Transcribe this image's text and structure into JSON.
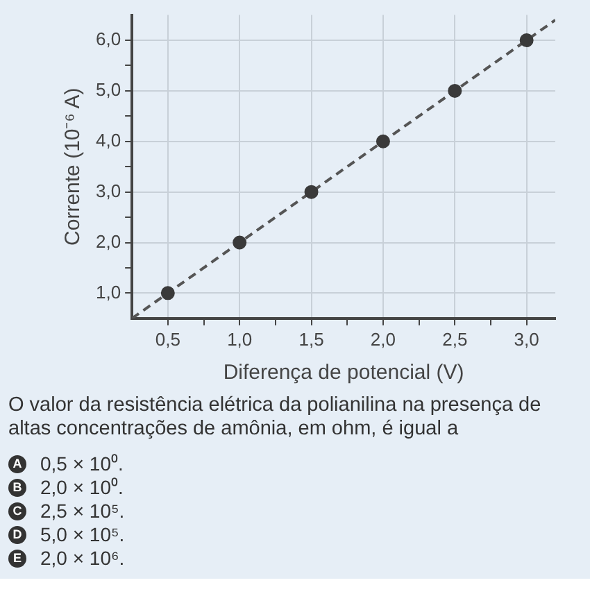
{
  "chart_data": {
    "type": "scatter",
    "xlabel": "Diferença de potencial (V)",
    "ylabel": "Corrente (10⁻⁶ A)",
    "series": [
      {
        "color": "#3a3a3a",
        "x": [
          0.5,
          1.0,
          1.5,
          2.0,
          2.5,
          3.0
        ],
        "values": [
          1.0,
          2.0,
          3.0,
          4.0,
          5.0,
          6.0
        ],
        "marker": "circle"
      },
      {
        "type": "line",
        "color": "#555555",
        "x": [
          0.25,
          3.2
        ],
        "values": [
          0.5,
          6.4
        ],
        "line_style": "dashed",
        "marker": "none"
      }
    ],
    "xlim": [
      0.25,
      3.2
    ],
    "ylim": [
      0.5,
      6.5
    ],
    "xticks": [
      {
        "value": 0.5,
        "label": "0,5"
      },
      {
        "value": 0.75,
        "label": null
      },
      {
        "value": 1.0,
        "label": "1,0"
      },
      {
        "value": 1.25,
        "label": null
      },
      {
        "value": 1.5,
        "label": "1,5"
      },
      {
        "value": 1.75,
        "label": null
      },
      {
        "value": 2.0,
        "label": "2,0"
      },
      {
        "value": 2.25,
        "label": null
      },
      {
        "value": 2.5,
        "label": "2,5"
      },
      {
        "value": 2.75,
        "label": null
      },
      {
        "value": 3.0,
        "label": "3,0"
      }
    ],
    "yticks": [
      {
        "value": 1.0,
        "label": "1,0"
      },
      {
        "value": 1.5,
        "label": null
      },
      {
        "value": 2.0,
        "label": "2,0"
      },
      {
        "value": 2.5,
        "label": null
      },
      {
        "value": 3.0,
        "label": "3,0"
      },
      {
        "value": 3.5,
        "label": null
      },
      {
        "value": 4.0,
        "label": "4,0"
      },
      {
        "value": 4.5,
        "label": null
      },
      {
        "value": 5.0,
        "label": "5,0"
      },
      {
        "value": 5.5,
        "label": null
      },
      {
        "value": 6.0,
        "label": "6,0"
      }
    ],
    "grid": true,
    "legend": false,
    "annotations": [
      "O valor da resistência elétrica da polianilina na presença de altas concentrações de amônia, em ohm, é igual a",
      "A 0,5 × 10⁰.",
      "B 2,0 × 10⁰.",
      "C 2,5 × 10⁵.",
      "D 5,0 × 10⁵.",
      "E 2,0 × 10⁶."
    ]
  }
}
